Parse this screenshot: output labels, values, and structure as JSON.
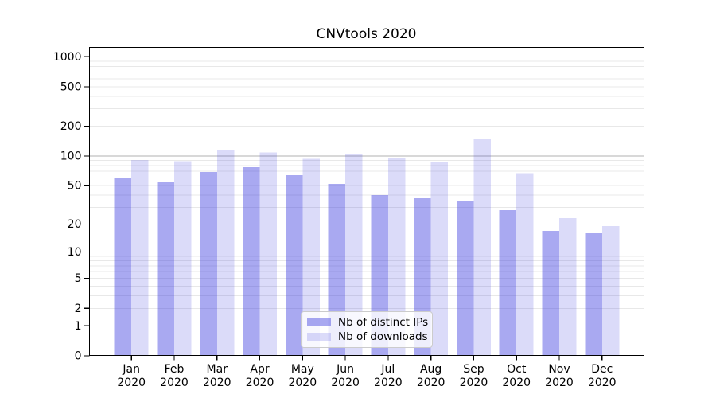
{
  "chart_data": {
    "type": "bar",
    "title": "CNVtools 2020",
    "categories": [
      "Jan",
      "Feb",
      "Mar",
      "Apr",
      "May",
      "Jun",
      "Jul",
      "Aug",
      "Sep",
      "Oct",
      "Nov",
      "Dec"
    ],
    "category_year": "2020",
    "series": [
      {
        "name": "Nb of distinct IPs",
        "color": "rgba(64,64,224,0.45)",
        "solid_color": "#a9a9f1",
        "values": [
          60,
          54,
          69,
          77,
          64,
          52,
          40,
          37,
          35,
          28,
          17,
          16
        ]
      },
      {
        "name": "Nb of downloads",
        "color": "rgba(64,64,224,0.19)",
        "solid_color": "#dcdcf8",
        "values": [
          91,
          89,
          115,
          109,
          94,
          105,
          96,
          88,
          151,
          67,
          23,
          19
        ]
      }
    ],
    "yscale": "log1p",
    "y_tick_labels": [
      0,
      1,
      2,
      5,
      10,
      20,
      50,
      100,
      200,
      500,
      1000
    ],
    "ylim": [
      0,
      1255
    ],
    "grid": true,
    "legend_position": "lower-center",
    "colors": {
      "major_grid": "#b0b0b0",
      "minor_grid": "#e8e8e8",
      "axis": "#000000",
      "text": "#000000",
      "background": "#ffffff"
    }
  }
}
